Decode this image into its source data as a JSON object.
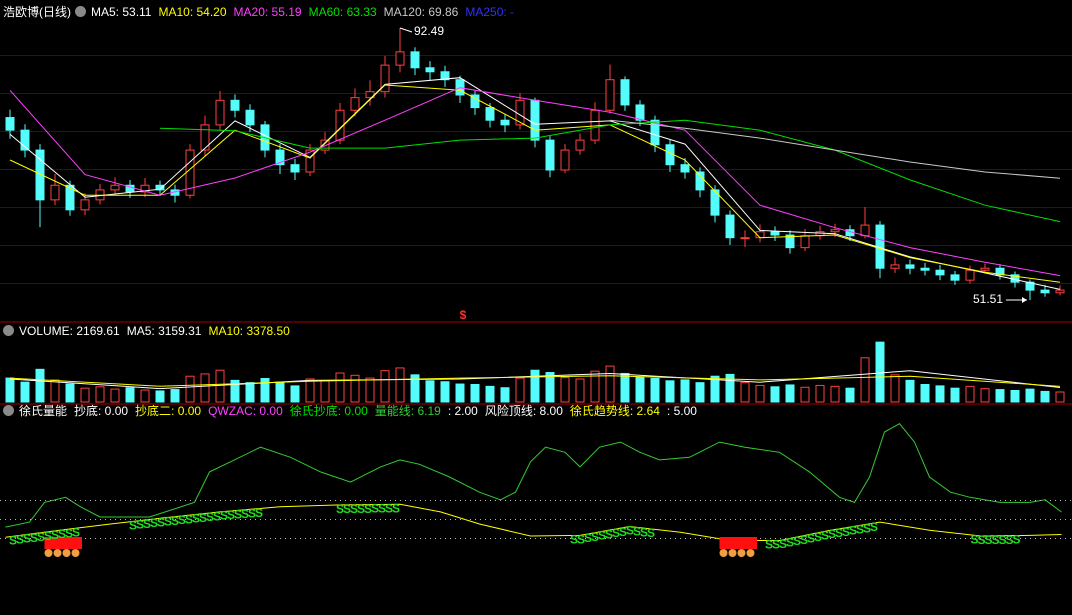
{
  "chart_data": [
    {
      "type": "candlestick",
      "title": "浩欧博(日线)",
      "ylim": [
        48.8,
        94.0
      ],
      "up_color": "#ff4040",
      "down_color": "#54fcfc",
      "open": [
        79.0,
        77.1,
        74.1,
        66.6,
        68.8,
        65.1,
        66.6,
        68.1,
        68.8,
        67.8,
        68.8,
        68.1,
        67.3,
        74.1,
        77.9,
        81.6,
        80.1,
        77.9,
        74.1,
        71.9,
        70.8,
        74.1,
        75.6,
        80.1,
        82.0,
        82.9,
        86.9,
        88.9,
        86.5,
        85.9,
        84.7,
        82.4,
        80.5,
        78.6,
        77.9,
        81.6,
        75.6,
        71.1,
        74.1,
        75.6,
        80.1,
        84.7,
        80.9,
        78.6,
        74.9,
        71.9,
        70.8,
        68.1,
        64.3,
        60.9,
        60.9,
        61.8,
        61.3,
        59.4,
        61.2,
        61.8,
        62.1,
        61.2,
        62.8,
        56.3,
        56.8,
        56.3,
        56.0,
        55.3,
        54.5,
        56.0,
        56.3,
        55.3,
        54.2,
        53.0,
        52.6
      ],
      "close": [
        77.1,
        74.1,
        66.6,
        68.8,
        65.1,
        66.6,
        68.1,
        68.8,
        67.8,
        68.8,
        68.1,
        67.3,
        74.1,
        77.9,
        81.6,
        80.1,
        77.9,
        74.1,
        71.9,
        70.8,
        74.1,
        75.6,
        80.1,
        82.0,
        82.9,
        86.9,
        88.9,
        86.5,
        85.9,
        84.7,
        82.4,
        80.5,
        78.6,
        77.9,
        81.6,
        75.6,
        71.1,
        74.1,
        75.6,
        80.1,
        84.7,
        80.9,
        78.6,
        74.9,
        71.9,
        70.8,
        68.1,
        64.3,
        60.9,
        60.9,
        61.8,
        61.3,
        59.4,
        61.2,
        61.8,
        62.1,
        61.2,
        62.8,
        56.3,
        56.8,
        56.3,
        56.0,
        55.3,
        54.5,
        56.0,
        56.3,
        55.3,
        54.2,
        53.0,
        52.6,
        53.0
      ],
      "high": [
        80.2,
        78.0,
        75.0,
        70.5,
        69.5,
        67.6,
        69.0,
        70.0,
        69.6,
        69.9,
        69.5,
        68.9,
        75.0,
        79.3,
        83.0,
        82.5,
        81.0,
        78.5,
        75.0,
        72.8,
        75.0,
        76.8,
        81.2,
        83.4,
        84.6,
        88.3,
        92.49,
        89.6,
        87.5,
        86.8,
        85.3,
        83.0,
        81.2,
        79.6,
        82.7,
        82.0,
        76.2,
        75.0,
        76.6,
        81.3,
        87.0,
        85.2,
        81.6,
        79.3,
        75.6,
        72.9,
        71.5,
        68.8,
        65.0,
        62.0,
        62.9,
        62.6,
        62.0,
        62.2,
        62.7,
        63.0,
        62.8,
        65.5,
        63.4,
        57.9,
        57.6,
        57.1,
        56.8,
        55.9,
        56.7,
        57.0,
        56.9,
        55.8,
        54.6,
        53.8,
        53.7
      ],
      "low": [
        75.8,
        73.0,
        62.5,
        65.8,
        64.2,
        64.3,
        65.9,
        67.5,
        66.9,
        67.0,
        67.2,
        66.2,
        66.8,
        73.2,
        77.0,
        79.0,
        76.8,
        73.0,
        70.5,
        69.6,
        70.2,
        73.5,
        75.0,
        79.2,
        80.8,
        82.0,
        85.8,
        85.4,
        84.6,
        83.6,
        81.2,
        79.4,
        77.5,
        76.8,
        77.2,
        74.5,
        70.0,
        70.6,
        73.4,
        75.0,
        79.6,
        80.0,
        77.7,
        73.8,
        70.8,
        69.8,
        67.0,
        63.2,
        59.8,
        59.5,
        60.2,
        60.4,
        58.5,
        58.9,
        60.6,
        61.0,
        60.4,
        60.8,
        54.8,
        55.6,
        55.4,
        55.2,
        54.5,
        53.8,
        54.0,
        55.5,
        54.6,
        53.4,
        51.51,
        52.0,
        52.2
      ],
      "series": [
        {
          "name": "MA5: 53.11",
          "color": "#ffffff",
          "x": [
            0,
            5,
            10,
            15,
            20,
            25,
            30,
            35,
            40,
            45,
            50,
            55,
            60,
            65,
            70
          ],
          "values": [
            76.5,
            67.0,
            68.2,
            78.5,
            73.0,
            84.0,
            85.0,
            78.0,
            78.5,
            75.0,
            62.0,
            61.5,
            58.0,
            55.6,
            53.11
          ]
        },
        {
          "name": "MA10: 54.20",
          "color": "#ffff00",
          "x": [
            0,
            5,
            10,
            15,
            20,
            25,
            30,
            35,
            40,
            45,
            50,
            55,
            60,
            65,
            70
          ],
          "values": [
            72.6,
            67.3,
            67.3,
            77.1,
            72.9,
            83.9,
            83.1,
            77.1,
            77.9,
            72.6,
            60.9,
            61.3,
            57.9,
            55.7,
            54.2
          ]
        },
        {
          "name": "MA20: 55.19",
          "color": "#ff40ff",
          "x": [
            0,
            5,
            10,
            15,
            20,
            25,
            30,
            35,
            40,
            45,
            50,
            55,
            60,
            65,
            70
          ],
          "values": [
            83.1,
            70.4,
            67.3,
            69.9,
            73.8,
            78.6,
            83.5,
            81.6,
            79.8,
            77.1,
            65.8,
            62.4,
            59.4,
            57.2,
            55.19
          ]
        },
        {
          "name": "MA60: 63.33",
          "color": "#00e000",
          "x": [
            10,
            15,
            20,
            25,
            30,
            35,
            40,
            45,
            50,
            55,
            60,
            65,
            70
          ],
          "values": [
            77.4,
            77.0,
            74.4,
            74.4,
            75.6,
            75.9,
            77.9,
            78.6,
            77.1,
            74.1,
            69.6,
            65.8,
            63.33
          ]
        },
        {
          "name": "MA120: 69.86",
          "color": "#c8c8c8",
          "x": [
            40,
            45,
            50,
            55,
            60,
            65,
            70
          ],
          "values": [
            78.6,
            77.4,
            75.9,
            74.1,
            72.3,
            70.8,
            69.86
          ]
        },
        {
          "name": "MA250: -",
          "color": "#3030ff"
        }
      ],
      "annotations": [
        {
          "text": "92.49",
          "x": 26,
          "value": 92.49,
          "side": "right"
        },
        {
          "text": "51.51",
          "x": 68,
          "value": 51.51,
          "side": "left"
        }
      ],
      "marker": {
        "text": "$",
        "x": 30.2
      }
    },
    {
      "type": "volume",
      "title": "VOLUME: 2169.61",
      "ylim": [
        0,
        13900
      ],
      "values": [
        5200,
        4300,
        7100,
        4800,
        3900,
        3000,
        3300,
        2800,
        3100,
        2600,
        2400,
        2700,
        5600,
        6100,
        6900,
        4700,
        4200,
        5100,
        4300,
        3500,
        5000,
        4600,
        6300,
        5800,
        5200,
        6800,
        7400,
        5900,
        4600,
        4400,
        3900,
        3800,
        3400,
        3100,
        5200,
        6900,
        6400,
        5300,
        5000,
        6700,
        7800,
        6200,
        5400,
        5100,
        4600,
        4800,
        4200,
        5600,
        6000,
        4200,
        3600,
        3300,
        3700,
        3200,
        3600,
        3400,
        3000,
        9600,
        13000,
        5900,
        4700,
        3800,
        3500,
        3000,
        3400,
        2900,
        2700,
        2500,
        2800,
        2300,
        2169.61
      ],
      "series": [
        {
          "name": "MA5: 3159.31",
          "color": "#ffffff",
          "x": [
            0,
            10,
            20,
            30,
            40,
            50,
            60,
            70
          ],
          "values": [
            5000,
            2900,
            4700,
            5000,
            6200,
            4300,
            6800,
            3159.31
          ]
        },
        {
          "name": "MA10: 3378.50",
          "color": "#ffff00",
          "x": [
            0,
            10,
            20,
            30,
            40,
            50,
            60,
            70
          ],
          "values": [
            5200,
            3400,
            4500,
            5200,
            5700,
            4800,
            5600,
            3378.5
          ]
        }
      ]
    },
    {
      "type": "indicator",
      "title": "徐氏量能",
      "ylim": [
        -8,
        21
      ],
      "series": [
        {
          "name": "抄底: 0.00",
          "color": "#ffffff"
        },
        {
          "name": "抄底二: 0.00",
          "color": "#ffff00"
        },
        {
          "name": "QWZAC: 0.00",
          "color": "#ff40ff"
        },
        {
          "name": "徐氏抄底: 0.00",
          "color": "#00e000"
        },
        {
          "name": "量能线: 6.19",
          "color": "#33cc33",
          "x": [
            -0.3,
            1.3,
            2.3,
            3.7,
            4.7,
            6.0,
            9.3,
            12.3,
            13.3,
            14.7,
            16.7,
            18.7,
            20.7,
            22.7,
            24.7,
            26.0,
            27.3,
            29.3,
            31.3,
            32.7,
            33.7,
            34.7,
            35.7,
            37.0,
            38.0,
            39.3,
            40.7,
            42.0,
            43.3,
            45.3,
            47.3,
            49.0,
            51.3,
            53.3,
            55.3,
            56.3,
            57.3,
            58.3,
            59.3,
            60.3,
            61.3,
            62.7,
            64.0,
            66.0,
            68.0,
            69.0,
            70.1
          ],
          "values": [
            3.8,
            4.6,
            7.7,
            8.5,
            7.0,
            5.4,
            5.4,
            7.7,
            12.5,
            14.1,
            16.4,
            14.8,
            12.5,
            10.9,
            13.3,
            14.4,
            13.7,
            11.7,
            9.3,
            8.1,
            9.3,
            14.1,
            16.4,
            15.6,
            13.3,
            16.4,
            17.2,
            15.6,
            14.4,
            14.8,
            17.2,
            16.4,
            15.6,
            12.5,
            8.5,
            7.7,
            11.7,
            18.8,
            20.1,
            17.2,
            11.7,
            9.3,
            8.5,
            7.7,
            7.7,
            8.1,
            6.19
          ]
        },
        {
          "name": ": 2.00",
          "color": "#ffffff",
          "level": 2
        },
        {
          "name": "风险顶线: 8.00",
          "color": "#ffffff",
          "level": 8
        },
        {
          "name": "徐氏趋势线: 2.64",
          "color": "#ffff00",
          "x": [
            -0.3,
            3.3,
            6.7,
            10.0,
            14.0,
            18.0,
            22.0,
            26.0,
            28.7,
            31.3,
            34.7,
            38.0,
            41.3,
            44.7,
            48.0,
            51.3,
            54.7,
            58.0,
            61.3,
            64.7,
            68.0,
            70.1
          ],
          "values": [
            2.2,
            3.3,
            4.3,
            5.2,
            6.2,
            7.0,
            7.3,
            7.4,
            6.2,
            4.3,
            2.4,
            2.5,
            3.9,
            3.0,
            1.7,
            1.7,
            3.3,
            4.6,
            3.3,
            2.4,
            2.5,
            2.64
          ]
        },
        {
          "name": ": 5.00",
          "color": "#ffffff",
          "level": 5
        }
      ],
      "signals": [
        {
          "label": "S",
          "from": 0.2,
          "to": 4.6
        },
        {
          "label": "S",
          "from": 8.2,
          "to": 16.8
        },
        {
          "label": "S",
          "from": 22,
          "to": 26
        },
        {
          "label": "S",
          "from": 37.6,
          "to": 43
        },
        {
          "label": "S",
          "from": 50.6,
          "to": 58
        },
        {
          "label": "S",
          "from": 64.3,
          "to": 67.4
        }
      ],
      "blocks": [
        {
          "from": 2.3,
          "to": 4.8
        },
        {
          "from": 47.3,
          "to": 49.8
        }
      ]
    }
  ]
}
